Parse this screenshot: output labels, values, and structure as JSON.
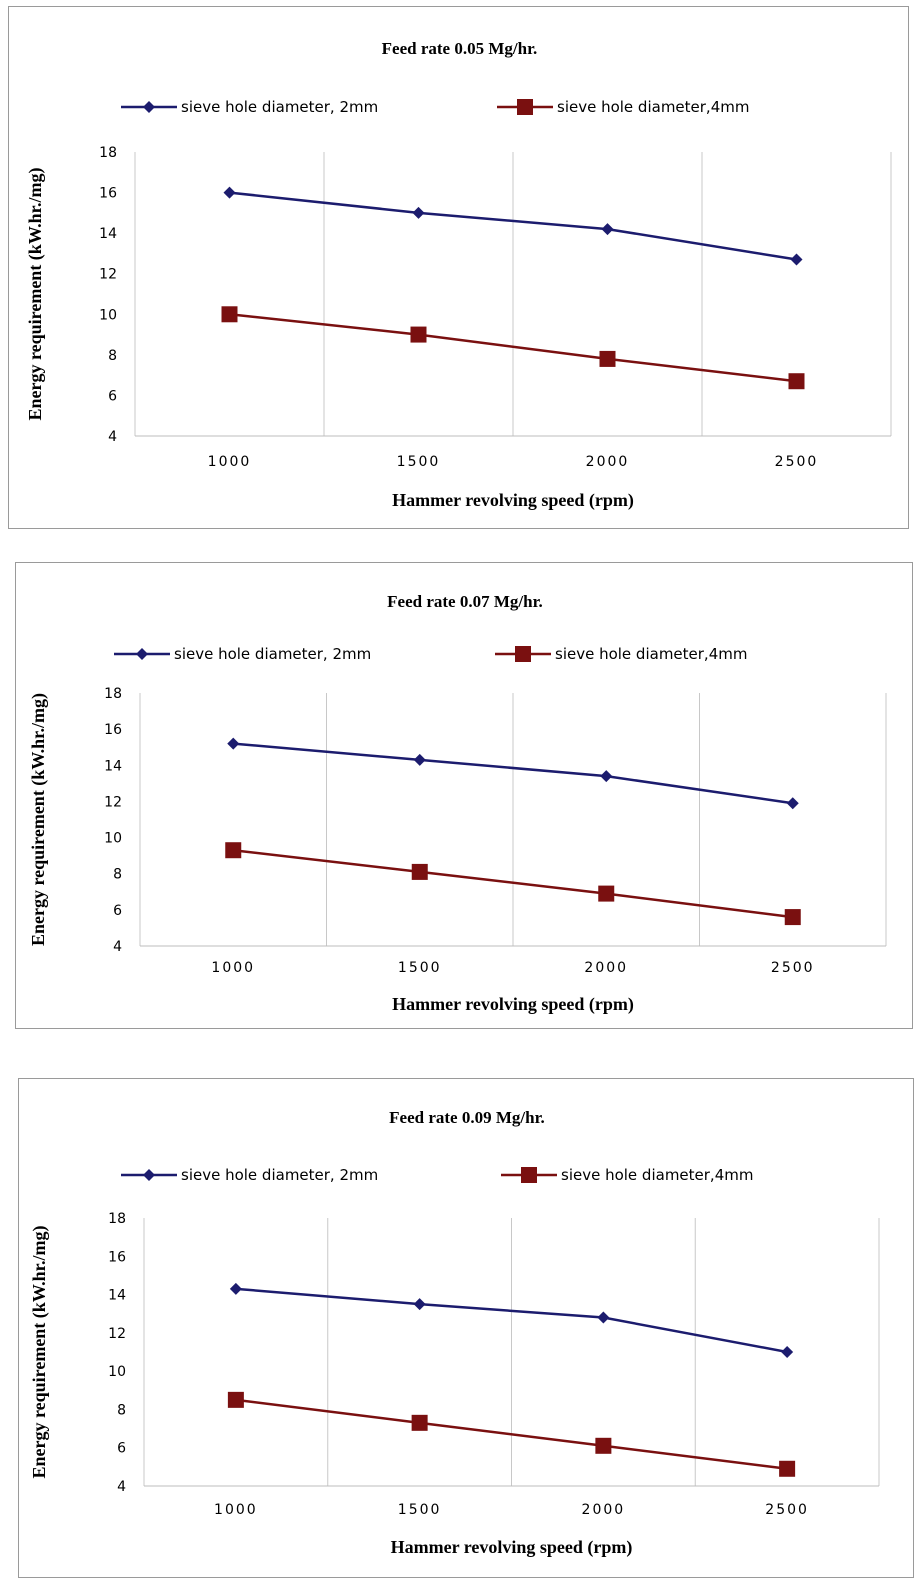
{
  "chart_data": [
    {
      "type": "line",
      "title": "Feed rate 0.05 Mg/hr.",
      "xlabel": "Hammer revolving speed (rpm)",
      "ylabel": "Energy requirement (kW.hr./mg)",
      "categories": [
        "1000",
        "1500",
        "2000",
        "2500"
      ],
      "ylim": [
        4,
        18
      ],
      "yticks": [
        "4",
        "6",
        "8",
        "10",
        "12",
        "14",
        "16",
        "18"
      ],
      "grid": "vertical",
      "legend": "top",
      "series": [
        {
          "name": "sieve hole diameter, 2mm",
          "values": [
            16.0,
            15.0,
            14.2,
            12.7
          ],
          "color": "#1c1c6e",
          "marker": "diamond"
        },
        {
          "name": "sieve hole diameter,4mm",
          "values": [
            10.0,
            9.0,
            7.8,
            6.7
          ],
          "color": "#7a1010",
          "marker": "square"
        }
      ]
    },
    {
      "type": "line",
      "title": "Feed rate 0.07 Mg/hr.",
      "xlabel": "Hammer revolving speed (rpm)",
      "ylabel": "Energy requirement (kW.hr./mg)",
      "categories": [
        "1000",
        "1500",
        "2000",
        "2500"
      ],
      "ylim": [
        4,
        18
      ],
      "yticks": [
        "4",
        "6",
        "8",
        "10",
        "12",
        "14",
        "16",
        "18"
      ],
      "grid": "vertical",
      "legend": "top",
      "series": [
        {
          "name": "sieve hole diameter, 2mm",
          "values": [
            15.2,
            14.3,
            13.4,
            11.9
          ],
          "color": "#1c1c6e",
          "marker": "diamond"
        },
        {
          "name": "sieve hole diameter,4mm",
          "values": [
            9.3,
            8.1,
            6.9,
            5.6
          ],
          "color": "#7a1010",
          "marker": "square"
        }
      ]
    },
    {
      "type": "line",
      "title": "Feed rate 0.09 Mg/hr.",
      "xlabel": "Hammer revolving speed (rpm)",
      "ylabel": "Energy requirement (kW.hr./mg)",
      "categories": [
        "1000",
        "1500",
        "2000",
        "2500"
      ],
      "ylim": [
        4,
        18
      ],
      "yticks": [
        "4",
        "6",
        "8",
        "10",
        "12",
        "14",
        "16",
        "18"
      ],
      "grid": "vertical",
      "legend": "top",
      "series": [
        {
          "name": "sieve hole diameter, 2mm",
          "values": [
            14.3,
            13.5,
            12.8,
            11.0
          ],
          "color": "#1c1c6e",
          "marker": "diamond"
        },
        {
          "name": "sieve hole diameter,4mm",
          "values": [
            8.5,
            7.3,
            6.1,
            4.9
          ],
          "color": "#7a1010",
          "marker": "square"
        }
      ]
    }
  ]
}
